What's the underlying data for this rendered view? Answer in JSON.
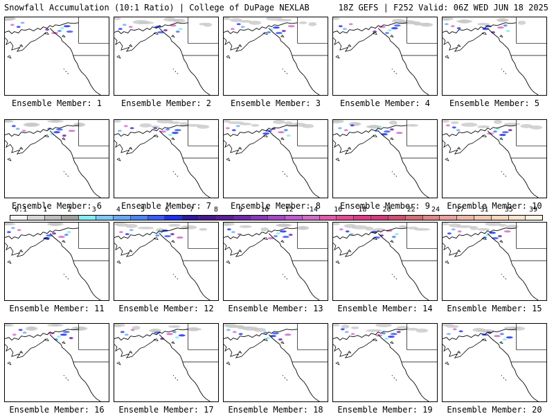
{
  "header": {
    "left": "Snowfall Accumulation (10:1 Ratio) | College of DuPage NEXLAB",
    "right": "18Z GEFS | F252 Valid: 06Z WED JUN 18 2025"
  },
  "members": [
    "Ensemble Member: 1",
    "Ensemble Member: 2",
    "Ensemble Member: 3",
    "Ensemble Member: 4",
    "Ensemble Member: 5",
    "Ensemble Member: 6",
    "Ensemble Member: 7",
    "Ensemble Member: 8",
    "Ensemble Member: 9",
    "Ensemble Member: 10",
    "Ensemble Member: 11",
    "Ensemble Member: 12",
    "Ensemble Member: 13",
    "Ensemble Member: 14",
    "Ensemble Member: 15",
    "Ensemble Member: 16",
    "Ensemble Member: 17",
    "Ensemble Member: 18",
    "Ensemble Member: 19",
    "Ensemble Member: 20"
  ],
  "colorbar": {
    "labels": [
      "0.1",
      "1",
      "2",
      "3",
      "4",
      "5",
      "6",
      "7",
      "8",
      "9",
      "10",
      "12",
      "14",
      "16",
      "18",
      "20",
      "22",
      "24",
      "27",
      "31",
      "35",
      "39"
    ],
    "colors": [
      "#f4f4f4",
      "#d6d6d6",
      "#bdbdbd",
      "#a0a0a0",
      "#86ecf2",
      "#7ec8f4",
      "#6aa8f2",
      "#4c84f0",
      "#3a5cf0",
      "#1f30e8",
      "#2d1a9c",
      "#44198c",
      "#5a1e96",
      "#7028a8",
      "#8a36b8",
      "#a448c4",
      "#bc5ccc",
      "#d06cc4",
      "#dc5ca8",
      "#e04c94",
      "#dc3c84",
      "#d03c78",
      "#cc5070",
      "#d07074",
      "#dc8888",
      "#e8a0a0",
      "#eeb6a6",
      "#f2c8b0",
      "#f4d6bc",
      "#f8e4cc",
      "#fcf2e2"
    ]
  }
}
